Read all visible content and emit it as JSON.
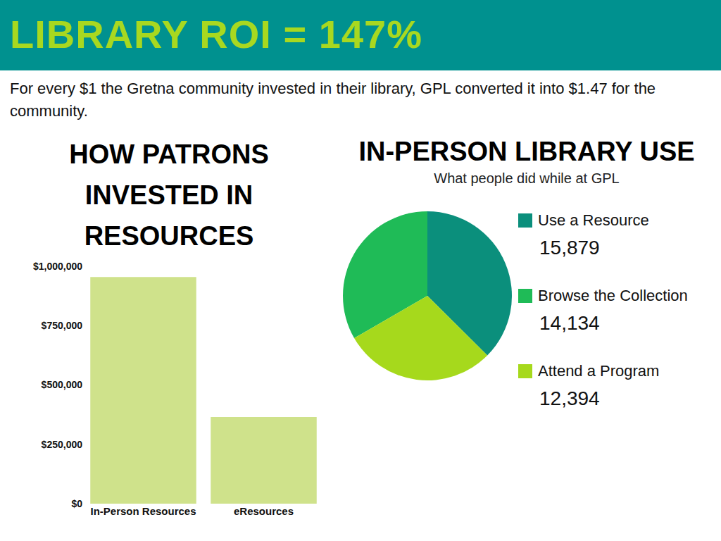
{
  "header": {
    "title": "LIBRARY ROI = 147%",
    "text": "For every $1 the Gretna community invested in their library, GPL converted it into $1.47 for the community."
  },
  "chart_data": [
    {
      "type": "bar",
      "title": "HOW PATRONS INVESTED IN RESOURCES",
      "categories": [
        "In-Person Resources",
        "eResources"
      ],
      "values": [
        955000,
        365000
      ],
      "color": "#cfe28b",
      "ylim": [
        0,
        1000000
      ],
      "yticks": [
        {
          "value": 0,
          "label": "$0"
        },
        {
          "value": 250000,
          "label": "$250,000"
        },
        {
          "value": 500000,
          "label": "$500,000"
        },
        {
          "value": 750000,
          "label": "$750,000"
        },
        {
          "value": 1000000,
          "label": "$1,000,000"
        }
      ],
      "grid": false
    },
    {
      "type": "pie",
      "title": "IN-PERSON LIBRARY USE",
      "subtitle": "What people did while at GPL",
      "categories": [
        "Use a Resource",
        "Browse the Collection",
        "Attend a Program"
      ],
      "values": [
        15879,
        14134,
        12394
      ],
      "value_labels": [
        "15,879",
        "14,134",
        "12,394"
      ],
      "colors": [
        "#0b8f7c",
        "#1fbb57",
        "#a6d91c"
      ]
    }
  ]
}
